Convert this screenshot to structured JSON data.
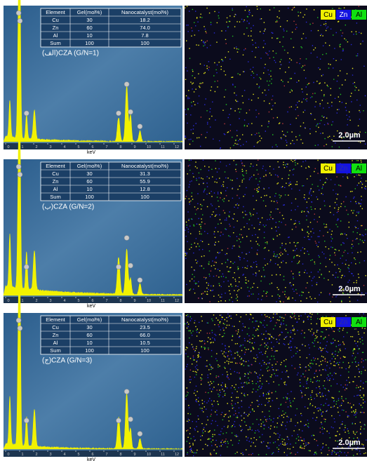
{
  "panels": [
    {
      "label": "(الف)CZA (G/N=1)",
      "table": {
        "header": [
          "Element",
          "Gel(mol%)",
          "Nanocatalyst(mol%)"
        ],
        "rows": [
          [
            "Cu",
            "30",
            "18.2"
          ],
          [
            "Zn",
            "60",
            "74.0"
          ],
          [
            "Al",
            "10",
            "7.8"
          ],
          [
            "Sum",
            "100",
            "100"
          ]
        ]
      },
      "x_ticks": [
        "0",
        "1",
        "2",
        "3",
        "4",
        "5",
        "6",
        "7",
        "8",
        "9",
        "10",
        "11",
        "12"
      ],
      "x_axis_label": "keV",
      "legend": [
        "Cu",
        "Zn",
        "Al"
      ],
      "scale_bar": "2.0µm"
    },
    {
      "label": "(ب)CZA (G/N=2)",
      "table": {
        "header": [
          "Element",
          "Gel(mol%)",
          "Nanocatalyst(mol%)"
        ],
        "rows": [
          [
            "Cu",
            "30",
            "31.3"
          ],
          [
            "Zn",
            "60",
            "55.9"
          ],
          [
            "Al",
            "10",
            "12.8"
          ],
          [
            "Sum",
            "100",
            "100"
          ]
        ]
      },
      "x_ticks": [
        "0",
        "1",
        "2",
        "3",
        "4",
        "5",
        "6",
        "7",
        "8",
        "9",
        "10",
        "11",
        "12"
      ],
      "x_axis_label": "keV",
      "legend": [
        "Cu",
        "Zn",
        "Al"
      ],
      "scale_bar": "2.0µm"
    },
    {
      "label": "(ج)CZA (G/N=3)",
      "table": {
        "header": [
          "Element",
          "Gel(mol%)",
          "Nanocatalyst(mol%)"
        ],
        "rows": [
          [
            "Cu",
            "30",
            "23.5"
          ],
          [
            "Zn",
            "60",
            "66.0"
          ],
          [
            "Al",
            "10",
            "10.5"
          ],
          [
            "Sum",
            "100",
            "100"
          ]
        ]
      },
      "x_ticks": [
        "0",
        "1",
        "2",
        "3",
        "4",
        "5",
        "6",
        "7",
        "8",
        "9",
        "10",
        "11",
        "12"
      ],
      "x_axis_label": "keV",
      "legend": [
        "Cu",
        "Zn",
        "Al"
      ],
      "scale_bar": "2.0µm"
    }
  ]
}
